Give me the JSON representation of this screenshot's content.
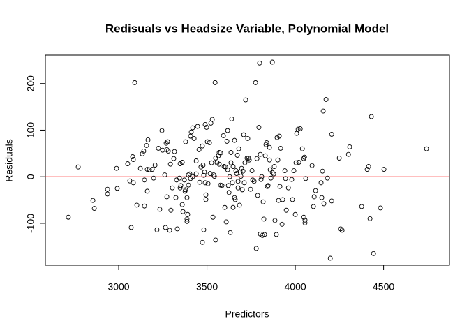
{
  "chart_data": {
    "type": "scatter",
    "title": "Redisuals vs Headsize Variable, Polynomial Model",
    "x_label": "Predictors",
    "y_label": "Residuals",
    "x": [
      2715,
      2771,
      2854,
      2862,
      2937,
      2937,
      2988,
      2992,
      3051,
      3063,
      3071,
      3079,
      3083,
      3091,
      3083,
      3103,
      3123,
      3134,
      3142,
      3146,
      3146,
      3158,
      3162,
      3166,
      3162,
      3174,
      3190,
      3198,
      3206,
      3217,
      3225,
      3233,
      3245,
      3249,
      3261,
      3265,
      3269,
      3273,
      3273,
      3277,
      3281,
      3289,
      3293,
      3296,
      3304,
      3312,
      3316,
      3324,
      3332,
      3328,
      3344,
      3348,
      3348,
      3352,
      3360,
      3360,
      3364,
      3372,
      3376,
      3379,
      3379,
      3387,
      3387,
      3387,
      3391,
      3395,
      3395,
      3403,
      3407,
      3407,
      3411,
      3419,
      3419,
      3427,
      3439,
      3439,
      3447,
      3455,
      3459,
      3466,
      3474,
      3474,
      3478,
      3482,
      3482,
      3486,
      3490,
      3490,
      3494,
      3494,
      3498,
      3502,
      3506,
      3514,
      3518,
      3522,
      3526,
      3530,
      3534,
      3538,
      3542,
      3546,
      3549,
      3549,
      3557,
      3565,
      3569,
      3569,
      3577,
      3577,
      3585,
      3593,
      3597,
      3601,
      3605,
      3609,
      3613,
      3617,
      3617,
      3621,
      3625,
      3629,
      3632,
      3636,
      3636,
      3640,
      3644,
      3648,
      3648,
      3656,
      3656,
      3660,
      3664,
      3668,
      3672,
      3676,
      3676,
      3680,
      3684,
      3688,
      3692,
      3696,
      3700,
      3704,
      3708,
      3711,
      3715,
      3719,
      3727,
      3731,
      3735,
      3739,
      3747,
      3755,
      3759,
      3767,
      3775,
      3779,
      3783,
      3787,
      3794,
      3798,
      3802,
      3802,
      3806,
      3810,
      3814,
      3818,
      3822,
      3826,
      3830,
      3834,
      3838,
      3842,
      3846,
      3854,
      3854,
      3858,
      3862,
      3870,
      3870,
      3878,
      3881,
      3885,
      3893,
      3897,
      3901,
      3905,
      3909,
      3913,
      3917,
      3925,
      3929,
      3941,
      3945,
      3949,
      3961,
      3980,
      3984,
      3992,
      4000,
      4004,
      4008,
      4016,
      4020,
      4028,
      4040,
      4048,
      4048,
      4052,
      4055,
      4055,
      4059,
      4095,
      4103,
      4107,
      4115,
      4146,
      4150,
      4154,
      4158,
      4162,
      4174,
      4182,
      4198,
      4206,
      4206,
      4249,
      4257,
      4265,
      4301,
      4308,
      4376,
      4407,
      4415,
      4423,
      4431,
      4443,
      4482,
      4502,
      4743
    ],
    "values": [
      -87,
      21,
      -51,
      -68,
      -27,
      -37,
      18,
      -25,
      28,
      -9,
      -109,
      43,
      -13,
      202,
      37,
      -61,
      18,
      49,
      55,
      -7,
      -63,
      67,
      16,
      79,
      -31,
      15,
      16,
      -3,
      25,
      -114,
      61,
      -70,
      99,
      57,
      4,
      -109,
      72,
      -43,
      58,
      75,
      55,
      -115,
      27,
      -72,
      -24,
      39,
      54,
      -45,
      -112,
      -7,
      -3,
      28,
      -24,
      -19,
      -60,
      31,
      -75,
      -7,
      -31,
      75,
      -28,
      -45,
      -96,
      -91,
      -81,
      -18,
      4,
      6,
      -4,
      87,
      96,
      105,
      0,
      82,
      6,
      34,
      108,
      58,
      -12,
      21,
      66,
      -141,
      25,
      3,
      -114,
      10,
      112,
      -13,
      -39,
      -49,
      106,
      75,
      -15,
      73,
      7,
      115,
      30,
      123,
      -87,
      4,
      1,
      202,
      40,
      -136,
      30,
      45,
      52,
      27,
      -18,
      51,
      -19,
      88,
      22,
      -66,
      21,
      -97,
      76,
      99,
      15,
      -19,
      -34,
      0,
      -120,
      30,
      52,
      124,
      -13,
      22,
      -66,
      78,
      -45,
      -49,
      13,
      7,
      46,
      -10,
      -24,
      60,
      -61,
      10,
      1,
      18,
      -28,
      12,
      90,
      -13,
      30,
      165,
      40,
      82,
      40,
      36,
      -27,
      13,
      -7,
      -10,
      202,
      -154,
      39,
      -40,
      106,
      244,
      -123,
      48,
      -6,
      0,
      -126,
      -54,
      -91,
      -124,
      45,
      69,
      73,
      -21,
      -19,
      63,
      36,
      15,
      -3,
      246,
      9,
      6,
      22,
      -94,
      -124,
      84,
      36,
      -51,
      87,
      -21,
      61,
      -102,
      -49,
      13,
      -4,
      -72,
      -24,
      -6,
      -49,
      13,
      -81,
      30,
      93,
      102,
      31,
      103,
      60,
      39,
      -87,
      42,
      -93,
      -99,
      -4,
      24,
      -64,
      -43,
      -30,
      -13,
      -45,
      12,
      141,
      -58,
      166,
      -3,
      -175,
      91,
      -52,
      40,
      -112,
      -115,
      48,
      64,
      -64,
      16,
      22,
      -90,
      129,
      -165,
      -67,
      16,
      60
    ],
    "color": "#000000",
    "xlim": [
      2585,
      4873
    ],
    "ylim": [
      -190,
      261
    ],
    "xticks": [
      3000,
      3500,
      4000,
      4500
    ],
    "yticks": [
      -100,
      0,
      100,
      200
    ],
    "hline": {
      "value": 0,
      "color": "#ff0000"
    }
  }
}
